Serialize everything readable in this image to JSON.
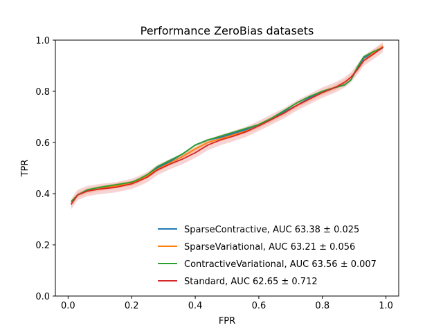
{
  "chart_data": {
    "type": "line",
    "title": "Performance ZeroBias datasets",
    "xlabel": "FPR",
    "ylabel": "TPR",
    "xlim": [
      -0.04,
      1.04
    ],
    "ylim": [
      0.0,
      1.0
    ],
    "xticks": [
      0.0,
      0.2,
      0.4,
      0.6,
      0.8,
      1.0
    ],
    "xtick_labels": [
      "0.0",
      "0.2",
      "0.4",
      "0.6",
      "0.8",
      "1.0"
    ],
    "yticks": [
      0.0,
      0.2,
      0.4,
      0.6,
      0.8,
      1.0
    ],
    "ytick_labels": [
      "0.0",
      "0.2",
      "0.4",
      "0.6",
      "0.8",
      "1.0"
    ],
    "grid": false,
    "legend_position": "lower-right",
    "series": [
      {
        "name": "SparseContractive, AUC 63.38 ± 0.025",
        "color": "#1f77b4",
        "x": [
          0.01,
          0.03,
          0.06,
          0.1,
          0.15,
          0.2,
          0.22,
          0.25,
          0.28,
          0.32,
          0.36,
          0.4,
          0.44,
          0.48,
          0.52,
          0.56,
          0.6,
          0.64,
          0.68,
          0.72,
          0.76,
          0.8,
          0.84,
          0.87,
          0.89,
          0.91,
          0.93,
          0.96,
          0.99
        ],
        "y": [
          0.36,
          0.395,
          0.41,
          0.42,
          0.43,
          0.445,
          0.45,
          0.47,
          0.5,
          0.525,
          0.555,
          0.59,
          0.61,
          0.62,
          0.635,
          0.65,
          0.665,
          0.69,
          0.72,
          0.745,
          0.775,
          0.795,
          0.815,
          0.825,
          0.845,
          0.89,
          0.93,
          0.95,
          0.97
        ],
        "band": 0.004
      },
      {
        "name": "SparseVariational, AUC 63.21 ± 0.056",
        "color": "#ff7f0e",
        "x": [
          0.01,
          0.03,
          0.06,
          0.1,
          0.15,
          0.2,
          0.22,
          0.25,
          0.28,
          0.32,
          0.36,
          0.4,
          0.44,
          0.48,
          0.52,
          0.56,
          0.6,
          0.64,
          0.68,
          0.72,
          0.76,
          0.8,
          0.84,
          0.87,
          0.89,
          0.91,
          0.93,
          0.96,
          0.99
        ],
        "y": [
          0.36,
          0.395,
          0.41,
          0.42,
          0.43,
          0.44,
          0.45,
          0.47,
          0.495,
          0.52,
          0.545,
          0.575,
          0.6,
          0.615,
          0.63,
          0.645,
          0.665,
          0.69,
          0.715,
          0.745,
          0.77,
          0.795,
          0.815,
          0.835,
          0.855,
          0.885,
          0.92,
          0.95,
          0.975
        ],
        "band": 0.01
      },
      {
        "name": "ContractiveVariational, AUC 63.56 ± 0.007",
        "color": "#2ca02c",
        "x": [
          0.01,
          0.03,
          0.06,
          0.1,
          0.15,
          0.2,
          0.22,
          0.25,
          0.28,
          0.32,
          0.36,
          0.4,
          0.44,
          0.48,
          0.52,
          0.56,
          0.6,
          0.64,
          0.68,
          0.72,
          0.76,
          0.8,
          0.84,
          0.87,
          0.89,
          0.91,
          0.93,
          0.96,
          0.99
        ],
        "y": [
          0.37,
          0.395,
          0.415,
          0.425,
          0.435,
          0.445,
          0.455,
          0.475,
          0.505,
          0.53,
          0.555,
          0.59,
          0.61,
          0.625,
          0.64,
          0.655,
          0.67,
          0.695,
          0.725,
          0.755,
          0.78,
          0.8,
          0.815,
          0.825,
          0.845,
          0.895,
          0.935,
          0.955,
          0.97
        ],
        "band": 0.004
      },
      {
        "name": "Standard, AUC 62.65 ± 0.712",
        "color": "#d62728",
        "x": [
          0.01,
          0.03,
          0.06,
          0.1,
          0.15,
          0.2,
          0.22,
          0.25,
          0.28,
          0.32,
          0.36,
          0.4,
          0.44,
          0.48,
          0.52,
          0.56,
          0.6,
          0.64,
          0.68,
          0.72,
          0.76,
          0.8,
          0.84,
          0.87,
          0.89,
          0.91,
          0.93,
          0.96,
          0.99
        ],
        "y": [
          0.36,
          0.395,
          0.41,
          0.418,
          0.425,
          0.438,
          0.448,
          0.465,
          0.492,
          0.515,
          0.535,
          0.56,
          0.59,
          0.61,
          0.625,
          0.642,
          0.665,
          0.69,
          0.715,
          0.745,
          0.77,
          0.795,
          0.815,
          0.835,
          0.855,
          0.885,
          0.92,
          0.945,
          0.972
        ],
        "band": 0.02
      }
    ]
  }
}
